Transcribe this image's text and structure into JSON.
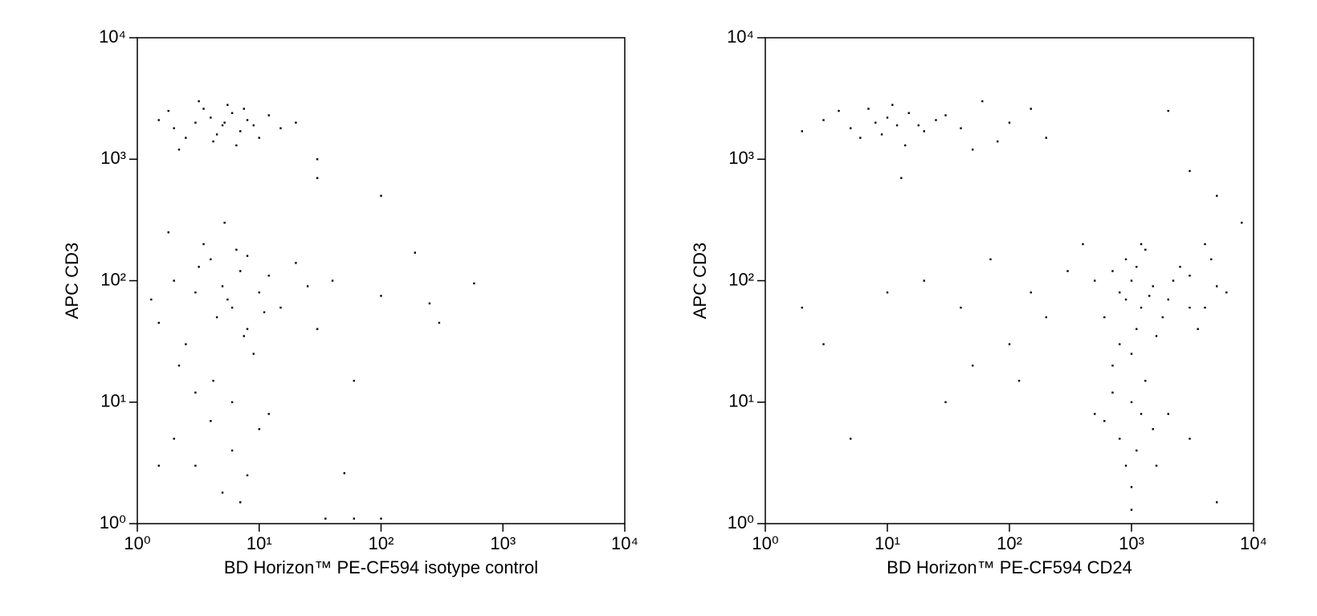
{
  "chart_data": [
    {
      "type": "scatter",
      "color": "#000000",
      "log": true,
      "xlabel": "BD Horizon™ PE-CF594 isotype control",
      "ylabel": "APC CD3",
      "xlim": [
        1,
        10000
      ],
      "ylim": [
        1,
        10000
      ],
      "xticks": [
        {
          "value": 1,
          "label": "10⁰"
        },
        {
          "value": 10,
          "label": "10¹"
        },
        {
          "value": 100,
          "label": "10²"
        },
        {
          "value": 1000,
          "label": "10³"
        },
        {
          "value": 10000,
          "label": "10⁴"
        }
      ],
      "yticks": [
        {
          "value": 1,
          "label": "10⁰"
        },
        {
          "value": 10,
          "label": "10¹"
        },
        {
          "value": 100,
          "label": "10²"
        },
        {
          "value": 1000,
          "label": "10³"
        },
        {
          "value": 10000,
          "label": "10⁴"
        }
      ],
      "x": [
        2,
        3,
        4,
        5,
        6,
        7,
        8,
        2.5,
        3.5,
        4.5,
        5.5,
        6.5,
        9,
        12,
        15,
        1.5,
        1.8,
        2.2,
        3.2,
        4.2,
        5.2,
        7.5,
        10,
        20,
        30,
        2,
        3,
        4,
        5,
        6,
        7,
        8,
        2.5,
        3.5,
        4.5,
        5.5,
        6.5,
        9,
        12,
        15,
        1.5,
        1.8,
        2.2,
        3.2,
        4.2,
        5.2,
        7.5,
        10,
        20,
        30,
        1.3,
        3,
        6,
        8,
        11,
        2,
        3,
        4,
        6,
        8,
        10,
        1.5,
        5,
        7,
        12,
        25,
        40,
        60,
        100,
        190,
        300,
        580,
        250,
        50,
        30,
        100,
        35,
        60,
        100
      ],
      "values": [
        1800,
        2000,
        2200,
        1900,
        2400,
        1700,
        2100,
        1500,
        2600,
        1600,
        2800,
        1300,
        1900,
        2300,
        1800,
        2100,
        2500,
        1200,
        3000,
        1400,
        2000,
        2600,
        1500,
        2000,
        1000,
        100,
        80,
        150,
        90,
        60,
        120,
        40,
        30,
        200,
        50,
        70,
        180,
        25,
        110,
        60,
        45,
        250,
        20,
        130,
        15,
        300,
        35,
        80,
        140,
        40,
        70,
        12,
        10,
        160,
        55,
        5,
        3,
        7,
        4,
        2.5,
        6,
        3,
        1.8,
        1.5,
        8,
        90,
        100,
        15,
        75,
        170,
        45,
        95,
        65,
        2.6,
        700,
        500,
        1.1,
        1.1,
        1.1
      ]
    },
    {
      "type": "scatter",
      "color": "#000000",
      "log": true,
      "xlabel": "BD Horizon™ PE-CF594 CD24",
      "ylabel": "APC CD3",
      "xlim": [
        1,
        10000
      ],
      "ylim": [
        1,
        10000
      ],
      "xticks": [
        {
          "value": 1,
          "label": "10⁰"
        },
        {
          "value": 10,
          "label": "10¹"
        },
        {
          "value": 100,
          "label": "10²"
        },
        {
          "value": 1000,
          "label": "10³"
        },
        {
          "value": 10000,
          "label": "10⁴"
        }
      ],
      "yticks": [
        {
          "value": 1,
          "label": "10⁰"
        },
        {
          "value": 10,
          "label": "10¹"
        },
        {
          "value": 100,
          "label": "10²"
        },
        {
          "value": 1000,
          "label": "10³"
        },
        {
          "value": 10000,
          "label": "10⁴"
        }
      ],
      "x": [
        5,
        8,
        10,
        12,
        15,
        20,
        25,
        6,
        7,
        9,
        11,
        14,
        18,
        30,
        40,
        3,
        4,
        50,
        60,
        80,
        100,
        150,
        200,
        2,
        13,
        800,
        1000,
        1200,
        900,
        1100,
        700,
        1500,
        2000,
        3000,
        4000,
        600,
        1300,
        2500,
        3500,
        5000,
        800,
        1000,
        1200,
        900,
        1800,
        2200,
        4500,
        6000,
        700,
        1100,
        1600,
        3000,
        4000,
        1400,
        500,
        1000,
        800,
        1200,
        900,
        1500,
        700,
        1100,
        1300,
        2000,
        600,
        1000,
        3000,
        5000,
        1000,
        1600,
        20,
        40,
        70,
        100,
        150,
        200,
        300,
        50,
        30,
        10,
        5,
        3,
        2,
        120,
        400,
        2000,
        3000,
        5000,
        8000,
        500
      ],
      "values": [
        1800,
        2000,
        2200,
        1900,
        2400,
        1700,
        2100,
        1500,
        2600,
        1600,
        2800,
        1300,
        1900,
        2300,
        1800,
        2100,
        2500,
        1200,
        3000,
        1400,
        2000,
        2600,
        1500,
        1700,
        700,
        80,
        100,
        60,
        150,
        40,
        120,
        90,
        70,
        110,
        60,
        50,
        180,
        130,
        40,
        90,
        30,
        25,
        200,
        70,
        50,
        100,
        150,
        80,
        20,
        130,
        35,
        60,
        200,
        75,
        100,
        10,
        5,
        8,
        3,
        6,
        12,
        4,
        15,
        8,
        7,
        2,
        5,
        1.5,
        1.3,
        3,
        100,
        60,
        150,
        30,
        80,
        50,
        120,
        20,
        10,
        80,
        5,
        30,
        60,
        15,
        200,
        2500,
        800,
        500,
        300,
        8
      ]
    }
  ]
}
